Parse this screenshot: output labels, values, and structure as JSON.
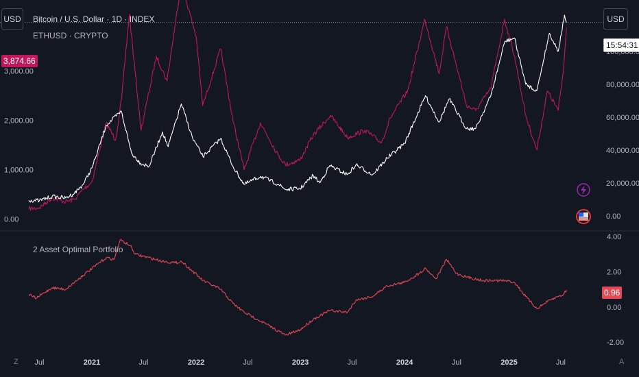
{
  "header": {
    "currency_left": "USD",
    "currency_right": "USD",
    "main_title": "Bitcoin / U.S. Dollar · 1D · INDEX",
    "compare_title": "ETHUSD · CRYPTO",
    "countdown": "15:54:31"
  },
  "badges": {
    "left_last": "3,874.66",
    "osc_last": "0.96"
  },
  "footer": {
    "left_icon": "Z",
    "right_icon": "A"
  },
  "colors": {
    "btc": "#ffffff",
    "eth": "#c2185b",
    "osc": "#e84855",
    "bg": "#131722",
    "grid": "#2a2e39"
  },
  "chart_data": [
    {
      "type": "line",
      "x_ticks": [
        "Jul",
        "2021",
        "Jul",
        "2022",
        "Jul",
        "2023",
        "Jul",
        "2024",
        "Jul",
        "2025",
        "Jul"
      ],
      "y_left_ticks": [
        "0.00",
        "1,000.00",
        "2,000.00",
        "3,000.00"
      ],
      "y_left_range": [
        -200,
        4300
      ],
      "y_right_ticks": [
        "0.00",
        "20,000.00",
        "40,000.00",
        "60,000.00",
        "80,000.00",
        "100,000.00"
      ],
      "y_right_range": [
        -8000,
        127000
      ],
      "last_right_value": "100,000.00",
      "series": [
        {
          "axis": "right",
          "color": "#ffffff",
          "points": [
            [
              "2020-05-25",
              9500
            ],
            [
              "2020-07-01",
              9200
            ],
            [
              "2020-08-15",
              11800
            ],
            [
              "2020-10-01",
              10800
            ],
            [
              "2020-11-01",
              13800
            ],
            [
              "2020-12-01",
              19000
            ],
            [
              "2021-01-01",
              29000
            ],
            [
              "2021-01-15",
              36000
            ],
            [
              "2021-02-20",
              55000
            ],
            [
              "2021-04-14",
              63500
            ],
            [
              "2021-05-20",
              38000
            ],
            [
              "2021-06-20",
              32000
            ],
            [
              "2021-07-20",
              30000
            ],
            [
              "2021-09-05",
              51000
            ],
            [
              "2021-09-25",
              42000
            ],
            [
              "2021-11-10",
              68000
            ],
            [
              "2021-12-20",
              47000
            ],
            [
              "2022-01-25",
              36000
            ],
            [
              "2022-03-28",
              47000
            ],
            [
              "2022-05-10",
              30000
            ],
            [
              "2022-06-18",
              19000
            ],
            [
              "2022-08-15",
              24000
            ],
            [
              "2022-10-15",
              19200
            ],
            [
              "2022-11-10",
              16000
            ],
            [
              "2022-12-31",
              16500
            ],
            [
              "2023-02-15",
              24500
            ],
            [
              "2023-03-10",
              20000
            ],
            [
              "2023-04-14",
              30500
            ],
            [
              "2023-06-15",
              25000
            ],
            [
              "2023-07-15",
              31000
            ],
            [
              "2023-09-11",
              25000
            ],
            [
              "2023-11-01",
              35000
            ],
            [
              "2024-01-01",
              44000
            ],
            [
              "2024-03-14",
              73000
            ],
            [
              "2024-05-01",
              57000
            ],
            [
              "2024-06-05",
              71000
            ],
            [
              "2024-08-05",
              53000
            ],
            [
              "2024-09-06",
              53000
            ],
            [
              "2024-10-29",
              73000
            ],
            [
              "2024-12-17",
              106000
            ],
            [
              "2025-01-20",
              108000
            ],
            [
              "2025-02-28",
              80000
            ],
            [
              "2025-04-08",
              76000
            ],
            [
              "2025-05-22",
              111000
            ],
            [
              "2025-06-22",
              100000
            ],
            [
              "2025-07-14",
              122000
            ],
            [
              "2025-07-21",
              117500
            ]
          ]
        },
        {
          "axis": "left",
          "color": "#c2185b",
          "points": [
            [
              "2020-05-25",
              210
            ],
            [
              "2020-07-01",
              230
            ],
            [
              "2020-08-15",
              430
            ],
            [
              "2020-10-01",
              350
            ],
            [
              "2020-11-01",
              400
            ],
            [
              "2020-12-01",
              600
            ],
            [
              "2021-01-01",
              750
            ],
            [
              "2021-02-20",
              1950
            ],
            [
              "2021-03-25",
              1600
            ],
            [
              "2021-04-15",
              2450
            ],
            [
              "2021-05-12",
              4150
            ],
            [
              "2021-06-22",
              1800
            ],
            [
              "2021-08-15",
              3300
            ],
            [
              "2021-09-21",
              2800
            ],
            [
              "2021-11-10",
              4800
            ],
            [
              "2022-01-01",
              3700
            ],
            [
              "2022-01-24",
              2300
            ],
            [
              "2022-03-28",
              3450
            ],
            [
              "2022-05-10",
              2000
            ],
            [
              "2022-06-18",
              1000
            ],
            [
              "2022-08-14",
              1950
            ],
            [
              "2022-10-15",
              1300
            ],
            [
              "2022-11-10",
              1100
            ],
            [
              "2022-12-31",
              1200
            ],
            [
              "2023-02-15",
              1700
            ],
            [
              "2023-04-16",
              2100
            ],
            [
              "2023-06-15",
              1650
            ],
            [
              "2023-08-15",
              1800
            ],
            [
              "2023-10-12",
              1550
            ],
            [
              "2023-11-12",
              2050
            ],
            [
              "2024-01-12",
              2600
            ],
            [
              "2024-03-12",
              4050
            ],
            [
              "2024-05-01",
              2950
            ],
            [
              "2024-05-27",
              3900
            ],
            [
              "2024-08-05",
              2300
            ],
            [
              "2024-09-06",
              2200
            ],
            [
              "2024-10-29",
              2650
            ],
            [
              "2024-12-16",
              4050
            ],
            [
              "2025-01-20",
              3300
            ],
            [
              "2025-02-28",
              2100
            ],
            [
              "2025-04-08",
              1400
            ],
            [
              "2025-05-15",
              2600
            ],
            [
              "2025-06-22",
              2200
            ],
            [
              "2025-07-10",
              3000
            ],
            [
              "2025-07-21",
              3875
            ]
          ]
        }
      ]
    },
    {
      "type": "line",
      "title": "2 Asset Optimal Portfolio",
      "y_ticks": [
        "-2.00",
        "0.00",
        "2.00",
        "4.00"
      ],
      "y_range": [
        -2.5,
        4.2
      ],
      "series": [
        {
          "color": "#e84855",
          "points": [
            [
              "2020-05-25",
              0.7
            ],
            [
              "2020-06-20",
              0.5
            ],
            [
              "2020-08-15",
              1.1
            ],
            [
              "2020-10-01",
              1.0
            ],
            [
              "2020-12-01",
              1.8
            ],
            [
              "2021-02-20",
              2.8
            ],
            [
              "2021-03-20",
              2.7
            ],
            [
              "2021-04-10",
              3.8
            ],
            [
              "2021-05-15",
              3.5
            ],
            [
              "2021-06-01",
              3.0
            ],
            [
              "2021-09-05",
              2.6
            ],
            [
              "2021-10-20",
              2.5
            ],
            [
              "2021-11-10",
              2.6
            ],
            [
              "2022-01-25",
              1.5
            ],
            [
              "2022-03-28",
              1.0
            ],
            [
              "2022-05-10",
              0.2
            ],
            [
              "2022-06-18",
              -0.3
            ],
            [
              "2022-08-15",
              -0.8
            ],
            [
              "2022-11-10",
              -1.6
            ],
            [
              "2022-12-31",
              -1.3
            ],
            [
              "2023-02-15",
              -0.7
            ],
            [
              "2023-04-14",
              -0.2
            ],
            [
              "2023-06-15",
              -0.3
            ],
            [
              "2023-07-15",
              0.4
            ],
            [
              "2023-09-11",
              0.6
            ],
            [
              "2023-11-01",
              1.2
            ],
            [
              "2024-01-01",
              1.4
            ],
            [
              "2024-02-20",
              1.9
            ],
            [
              "2024-03-14",
              2.2
            ],
            [
              "2024-04-20",
              1.6
            ],
            [
              "2024-05-27",
              2.7
            ],
            [
              "2024-07-01",
              1.9
            ],
            [
              "2024-08-05",
              1.7
            ],
            [
              "2024-10-01",
              1.5
            ],
            [
              "2024-12-16",
              1.5
            ],
            [
              "2025-01-20",
              1.4
            ],
            [
              "2025-02-28",
              0.6
            ],
            [
              "2025-04-08",
              -0.1
            ],
            [
              "2025-05-15",
              0.3
            ],
            [
              "2025-06-22",
              0.6
            ],
            [
              "2025-07-10",
              0.7
            ],
            [
              "2025-07-21",
              0.96
            ]
          ]
        }
      ]
    }
  ]
}
